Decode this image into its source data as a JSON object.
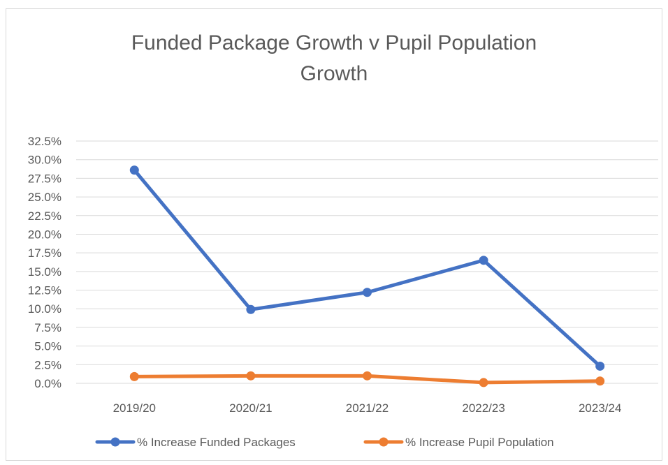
{
  "chart_data": {
    "type": "line",
    "title_line1": "Funded Package Growth v Pupil Population",
    "title_line2": "Growth",
    "categories": [
      "2019/20",
      "2020/21",
      "2021/22",
      "2022/23",
      "2023/24"
    ],
    "y_ticks": [
      "0.0%",
      "2.5%",
      "5.0%",
      "7.5%",
      "10.0%",
      "12.5%",
      "15.0%",
      "17.5%",
      "20.0%",
      "22.5%",
      "25.0%",
      "27.5%",
      "30.0%",
      "32.5%"
    ],
    "ylim": [
      0,
      32.5
    ],
    "y_step": 2.5,
    "grid": true,
    "legend_position": "bottom",
    "series": [
      {
        "name": "% Increase Funded Packages",
        "color": "#4472c4",
        "values": [
          28.6,
          9.9,
          12.2,
          16.5,
          2.3
        ]
      },
      {
        "name": "% Increase Pupil Population",
        "color": "#ed7d31",
        "values": [
          0.9,
          1.0,
          1.0,
          0.1,
          0.3
        ]
      }
    ]
  }
}
